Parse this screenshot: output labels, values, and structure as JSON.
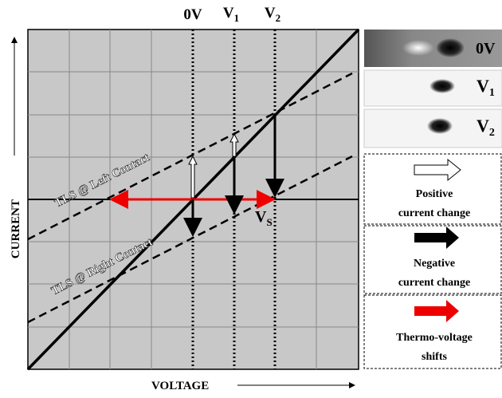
{
  "voltage_markers": [
    {
      "base": "0V"
    },
    {
      "base": "V",
      "sub": "1"
    },
    {
      "base": "V",
      "sub": "2"
    }
  ],
  "axes": {
    "y_label": "CURRENT",
    "x_label": "VOLTAGE"
  },
  "lines": {
    "left": "TLS @ Left Contact",
    "right": "TLS @ Right Contact"
  },
  "shift_label": {
    "base": "V",
    "sub": "S"
  },
  "panels": [
    {
      "base": "0V"
    },
    {
      "base": "V",
      "sub": "1"
    },
    {
      "base": "V",
      "sub": "2"
    }
  ],
  "legend": [
    {
      "lines": [
        "Positive",
        "current change"
      ]
    },
    {
      "lines": [
        "Negative",
        "current change"
      ]
    },
    {
      "lines": [
        "Thermo-voltage",
        "shifts"
      ]
    }
  ]
}
